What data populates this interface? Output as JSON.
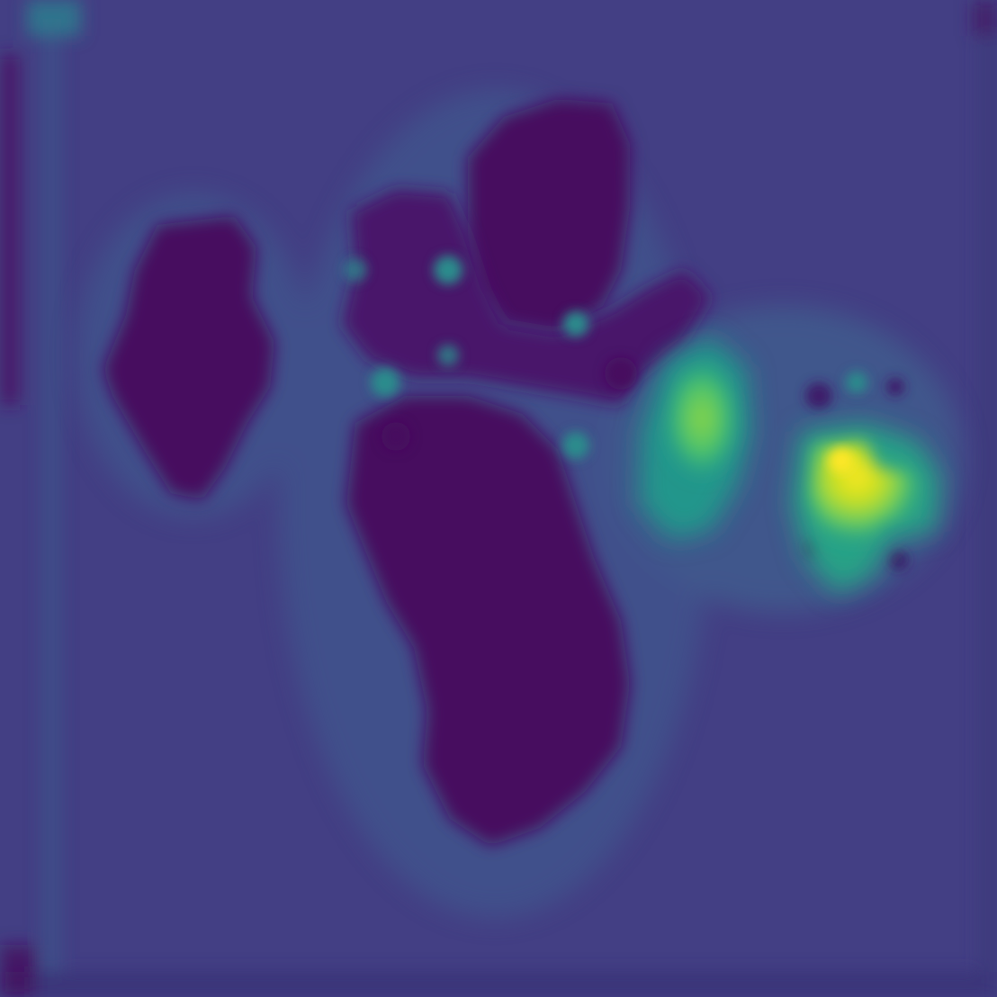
{
  "image": {
    "kind": "heatmap-overlay",
    "colormap": "viridis",
    "palette": {
      "background": "#433f84",
      "edge_strip": "#3a3478",
      "low": "#46105f",
      "low_mid": "#4a1a6b",
      "mid_low": "#3e5f8d",
      "mid": "#2a8c8c",
      "mid_high": "#27ad81",
      "high": "#6ccd5a",
      "very_high": "#b8de29",
      "peak": "#fde725"
    },
    "regions": [
      {
        "name": "left-dark-blob",
        "level": "low"
      },
      {
        "name": "center-dark-blob-upper",
        "level": "low"
      },
      {
        "name": "center-dark-blob-lower",
        "level": "low"
      },
      {
        "name": "right-green-blob",
        "level": "high"
      },
      {
        "name": "right-yellow-hotspot",
        "level": "peak"
      }
    ]
  }
}
